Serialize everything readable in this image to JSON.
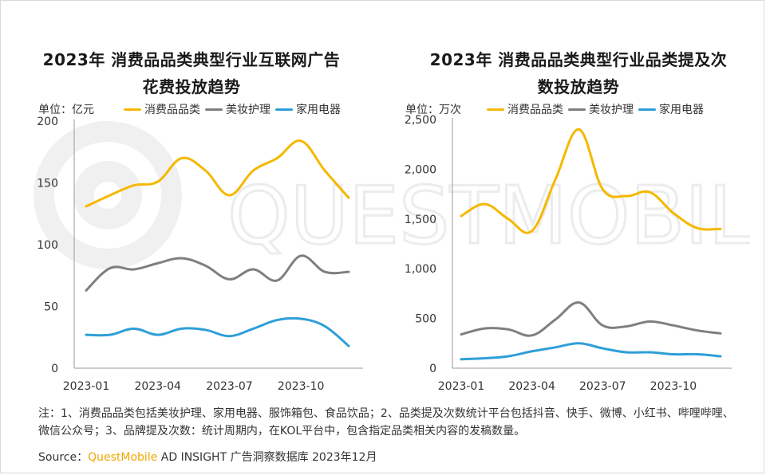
{
  "colors": {
    "consumer": "#f5b800",
    "beauty": "#7f7f7f",
    "appliance": "#2e9fd8",
    "watermark": "#f0f0f0",
    "brand": "#f0a800"
  },
  "watermark_text": "QUESTMOBILE",
  "legend": {
    "consumer": "消费品品类",
    "beauty": "美妆护理",
    "appliance": "家用电器"
  },
  "chart_data": [
    {
      "type": "line",
      "title_line1": "2023年 消费品品类典型行业互联网广告",
      "title_line2": "花费投放趋势",
      "unit": "单位：亿元",
      "ylim": [
        0,
        200
      ],
      "yticks": [
        0,
        50,
        100,
        150,
        200
      ],
      "ytick_labels": [
        "0",
        "50",
        "100",
        "150",
        "200"
      ],
      "x": [
        "2023-01",
        "2023-02",
        "2023-03",
        "2023-04",
        "2023-05",
        "2023-06",
        "2023-07",
        "2023-08",
        "2023-09",
        "2023-10",
        "2023-11",
        "2023-12"
      ],
      "xtick_labels": [
        "2023-01",
        "2023-04",
        "2023-07",
        "2023-10"
      ],
      "series": [
        {
          "name": "消费品品类",
          "key": "consumer",
          "values": [
            131,
            140,
            148,
            151,
            170,
            160,
            140,
            160,
            170,
            184,
            160,
            138
          ]
        },
        {
          "name": "美妆护理",
          "key": "beauty",
          "values": [
            63,
            81,
            80,
            85,
            89,
            83,
            72,
            80,
            71,
            91,
            78,
            78
          ]
        },
        {
          "name": "家用电器",
          "key": "appliance",
          "values": [
            27,
            27,
            32,
            27,
            32,
            31,
            26,
            32,
            39,
            40,
            34,
            18
          ]
        }
      ]
    },
    {
      "type": "line",
      "title_line1": "2023年 消费品品类典型行业品类提及次",
      "title_line2": "数投放趋势",
      "unit": "单位：万次",
      "ylim": [
        0,
        2500
      ],
      "yticks": [
        0,
        500,
        1000,
        1500,
        2000,
        2500
      ],
      "ytick_labels": [
        "0",
        "500",
        "1,000",
        "1,500",
        "2,000",
        "2,500"
      ],
      "x": [
        "2023-01",
        "2023-02",
        "2023-03",
        "2023-04",
        "2023-05",
        "2023-06",
        "2023-07",
        "2023-08",
        "2023-09",
        "2023-10",
        "2023-11",
        "2023-12"
      ],
      "xtick_labels": [
        "2023-01",
        "2023-04",
        "2023-07",
        "2023-10"
      ],
      "series": [
        {
          "name": "消费品品类",
          "key": "consumer",
          "values": [
            1530,
            1650,
            1500,
            1380,
            1900,
            2400,
            1800,
            1730,
            1770,
            1560,
            1410,
            1400
          ]
        },
        {
          "name": "美妆护理",
          "key": "beauty",
          "values": [
            340,
            400,
            390,
            330,
            490,
            660,
            430,
            420,
            470,
            430,
            380,
            350
          ]
        },
        {
          "name": "家用电器",
          "key": "appliance",
          "values": [
            90,
            100,
            120,
            170,
            210,
            250,
            200,
            160,
            160,
            140,
            140,
            120
          ]
        }
      ]
    }
  ],
  "note": "注：1、消费品品类包括美妆护理、家用电器、服饰箱包、食品饮品；2、品类提及次数统计平台包括抖音、快手、微博、小红书、哔哩哔哩、微信公众号；3、品牌提及次数：统计周期内，在KOL平台中，包含指定品类相关内容的发稿数量。",
  "source": {
    "prefix": "Source：",
    "brand": "QuestMobile",
    "suffix": " AD INSIGHT 广告洞察数据库 2023年12月"
  }
}
